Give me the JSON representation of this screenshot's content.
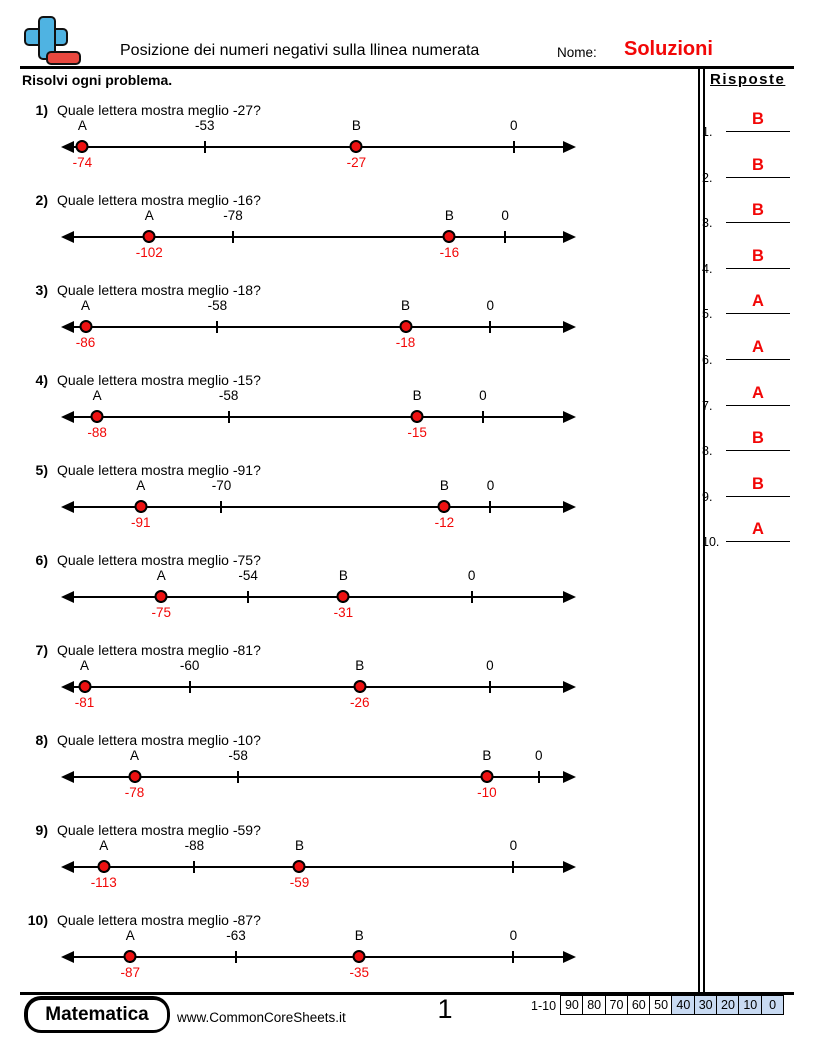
{
  "header": {
    "title": "Posizione dei numeri negativi sulla llinea numerata",
    "name_label": "Nome:",
    "name_value": "Soluzioni",
    "logo_icon": "plus-minus-icon"
  },
  "instructions": "Risolvi ogni problema.",
  "sidebar": {
    "header": "Risposte"
  },
  "answers": [
    {
      "num": "1.",
      "letter": "B"
    },
    {
      "num": "2.",
      "letter": "B"
    },
    {
      "num": "3.",
      "letter": "B"
    },
    {
      "num": "4.",
      "letter": "B"
    },
    {
      "num": "5.",
      "letter": "A"
    },
    {
      "num": "6.",
      "letter": "A"
    },
    {
      "num": "7.",
      "letter": "A"
    },
    {
      "num": "8.",
      "letter": "B"
    },
    {
      "num": "9.",
      "letter": "B"
    },
    {
      "num": "10.",
      "letter": "A"
    }
  ],
  "problems": [
    {
      "num": "1)",
      "question": "Quale lettera mostra meglio -27?",
      "axis": {
        "min": -77.5,
        "max": 10.5
      },
      "points": [
        {
          "kind": "dot",
          "top_label": "A",
          "value": -74,
          "below_label": "-74"
        },
        {
          "kind": "tick",
          "top_label": "-53",
          "value": -53
        },
        {
          "kind": "dot",
          "top_label": "B",
          "value": -27,
          "below_label": "-27"
        },
        {
          "kind": "tick",
          "top_label": "0",
          "value": 0
        }
      ]
    },
    {
      "num": "2)",
      "question": "Quale lettera mostra meglio -16?",
      "axis": {
        "min": -127,
        "max": 20
      },
      "points": [
        {
          "kind": "dot",
          "top_label": "A",
          "value": -102,
          "below_label": "-102"
        },
        {
          "kind": "tick",
          "top_label": "-78",
          "value": -78
        },
        {
          "kind": "dot",
          "top_label": "B",
          "value": -16,
          "below_label": "-16"
        },
        {
          "kind": "tick",
          "top_label": "0",
          "value": 0
        }
      ]
    },
    {
      "num": "3)",
      "question": "Quale lettera mostra meglio -18?",
      "axis": {
        "min": -91,
        "max": 18
      },
      "points": [
        {
          "kind": "dot",
          "top_label": "A",
          "value": -86,
          "below_label": "-86"
        },
        {
          "kind": "tick",
          "top_label": "-58",
          "value": -58
        },
        {
          "kind": "dot",
          "top_label": "B",
          "value": -18,
          "below_label": "-18"
        },
        {
          "kind": "tick",
          "top_label": "0",
          "value": 0
        }
      ]
    },
    {
      "num": "4)",
      "question": "Quale lettera mostra meglio -15?",
      "axis": {
        "min": -96,
        "max": 21
      },
      "points": [
        {
          "kind": "dot",
          "top_label": "A",
          "value": -88,
          "below_label": "-88"
        },
        {
          "kind": "tick",
          "top_label": "-58",
          "value": -58
        },
        {
          "kind": "dot",
          "top_label": "B",
          "value": -15,
          "below_label": "-15"
        },
        {
          "kind": "tick",
          "top_label": "0",
          "value": 0
        }
      ]
    },
    {
      "num": "5)",
      "question": "Quale lettera mostra meglio -91?",
      "axis": {
        "min": -111.5,
        "max": 22
      },
      "points": [
        {
          "kind": "dot",
          "top_label": "A",
          "value": -91,
          "below_label": "-91"
        },
        {
          "kind": "tick",
          "top_label": "-70",
          "value": -70
        },
        {
          "kind": "dot",
          "top_label": "B",
          "value": -12,
          "below_label": "-12"
        },
        {
          "kind": "tick",
          "top_label": "0",
          "value": 0
        }
      ]
    },
    {
      "num": "6)",
      "question": "Quale lettera mostra meglio -75?",
      "axis": {
        "min": -99,
        "max": 25
      },
      "points": [
        {
          "kind": "dot",
          "top_label": "A",
          "value": -75,
          "below_label": "-75"
        },
        {
          "kind": "tick",
          "top_label": "-54",
          "value": -54
        },
        {
          "kind": "dot",
          "top_label": "B",
          "value": -31,
          "below_label": "-31"
        },
        {
          "kind": "tick",
          "top_label": "0",
          "value": 0
        }
      ]
    },
    {
      "num": "7)",
      "question": "Quale lettera mostra meglio -81?",
      "axis": {
        "min": -85.5,
        "max": 17
      },
      "points": [
        {
          "kind": "dot",
          "top_label": "A",
          "value": -81,
          "below_label": "-81"
        },
        {
          "kind": "tick",
          "top_label": "-60",
          "value": -60
        },
        {
          "kind": "dot",
          "top_label": "B",
          "value": -26,
          "below_label": "-26"
        },
        {
          "kind": "tick",
          "top_label": "0",
          "value": 0
        }
      ]
    },
    {
      "num": "8)",
      "question": "Quale lettera mostra meglio -10?",
      "axis": {
        "min": -92,
        "max": 7
      },
      "points": [
        {
          "kind": "dot",
          "top_label": "A",
          "value": -78,
          "below_label": "-78"
        },
        {
          "kind": "tick",
          "top_label": "-58",
          "value": -58
        },
        {
          "kind": "dot",
          "top_label": "B",
          "value": -10,
          "below_label": "-10"
        },
        {
          "kind": "tick",
          "top_label": "0",
          "value": 0
        }
      ]
    },
    {
      "num": "9)",
      "question": "Quale lettera mostra meglio -59?",
      "axis": {
        "min": -124.5,
        "max": 17
      },
      "points": [
        {
          "kind": "dot",
          "top_label": "A",
          "value": -113,
          "below_label": "-113"
        },
        {
          "kind": "tick",
          "top_label": "-88",
          "value": -88
        },
        {
          "kind": "dot",
          "top_label": "B",
          "value": -59,
          "below_label": "-59"
        },
        {
          "kind": "tick",
          "top_label": "0",
          "value": 0
        }
      ]
    },
    {
      "num": "10)",
      "question": "Quale lettera mostra meglio -87?",
      "axis": {
        "min": -102.5,
        "max": 14
      },
      "points": [
        {
          "kind": "dot",
          "top_label": "A",
          "value": -87,
          "below_label": "-87"
        },
        {
          "kind": "tick",
          "top_label": "-63",
          "value": -63
        },
        {
          "kind": "dot",
          "top_label": "B",
          "value": -35,
          "below_label": "-35"
        },
        {
          "kind": "tick",
          "top_label": "0",
          "value": 0
        }
      ]
    }
  ],
  "footer": {
    "brand": "Matematica",
    "website": "www.CommonCoreSheets.it",
    "page_number": "1",
    "score_label": "1-10",
    "scores": [
      {
        "v": "90",
        "shaded": false
      },
      {
        "v": "80",
        "shaded": false
      },
      {
        "v": "70",
        "shaded": false
      },
      {
        "v": "60",
        "shaded": false
      },
      {
        "v": "50",
        "shaded": false
      },
      {
        "v": "40",
        "shaded": true
      },
      {
        "v": "30",
        "shaded": true
      },
      {
        "v": "20",
        "shaded": true
      },
      {
        "v": "10",
        "shaded": true
      },
      {
        "v": "0",
        "shaded": true
      }
    ]
  },
  "colors": {
    "accent_red": "#f20707",
    "dot_red": "#ee1111",
    "logo_blue": "#4fb3e2",
    "logo_red": "#e8483f",
    "score_shade": "#c8daf2"
  }
}
